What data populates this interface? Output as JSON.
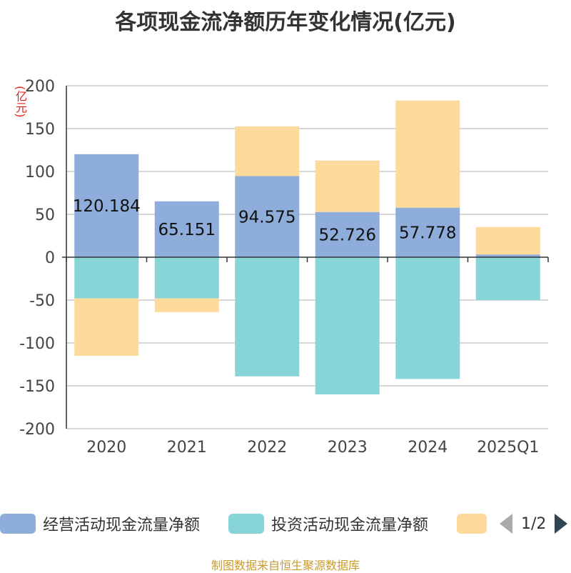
{
  "title": "各项现金流净额历年变化情况(亿元)",
  "unit_label": "(亿元)",
  "source": "制图数据来自恒生聚源数据库",
  "legend": {
    "items": [
      {
        "label": "经营活动现金流量净额",
        "color": "#8fadda"
      },
      {
        "label": "投资活动现金流量净额",
        "color": "#88d5d8"
      },
      {
        "label": "",
        "color": "#fdd99b"
      }
    ],
    "page_info": "1/2"
  },
  "chart_data": {
    "type": "bar",
    "stacked": true,
    "categories": [
      "2020",
      "2021",
      "2022",
      "2023",
      "2024",
      "2025Q1"
    ],
    "ylim": [
      -200,
      200
    ],
    "yticks": [
      200,
      150,
      100,
      50,
      0,
      -50,
      -100,
      -150,
      -200
    ],
    "grid": true,
    "legend_position": "bottom",
    "series": [
      {
        "name": "经营活动现金流量净额",
        "color": "#8fadda",
        "values": [
          120.184,
          65.151,
          94.575,
          52.726,
          57.778,
          3.2
        ],
        "labels": [
          "120.184",
          "65.151",
          "94.575",
          "52.726",
          "57.778",
          ""
        ]
      },
      {
        "name": "投资活动现金流量净额",
        "color": "#88d5d8",
        "values": [
          -48,
          -48,
          -139,
          -160,
          -142,
          -50
        ]
      },
      {
        "color": "#fdd99b",
        "values": [
          -67,
          -16,
          58,
          60,
          125,
          32
        ]
      }
    ]
  }
}
